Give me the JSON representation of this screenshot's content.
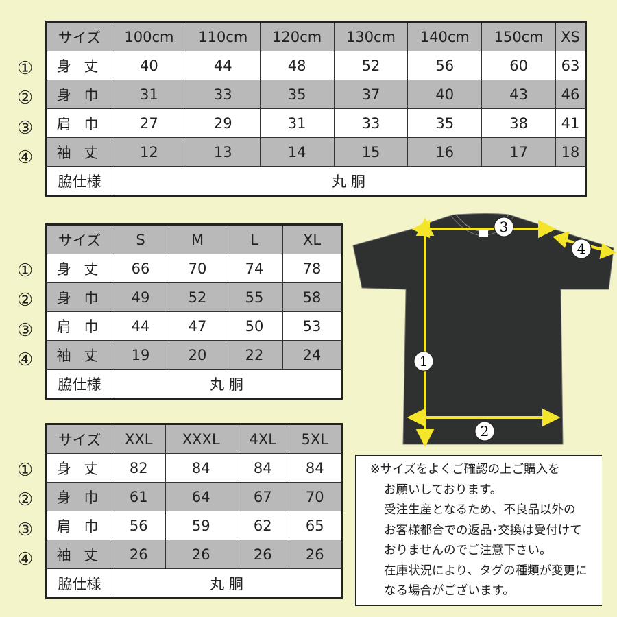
{
  "colors": {
    "background": "#f4f4cb",
    "gray_row": "#b9b9b9",
    "arrow": "#f5e52a",
    "shirt": "#2f3130"
  },
  "row_markers": [
    "①",
    "②",
    "③",
    "④"
  ],
  "row_labels": [
    "身 丈",
    "身 巾",
    "肩 巾",
    "袖 丈"
  ],
  "header_label": "サイズ",
  "side_label": "脇仕様",
  "side_value": "丸 胴",
  "tables": [
    {
      "sizes": [
        "100cm",
        "110cm",
        "120cm",
        "130cm",
        "140cm",
        "150cm",
        "XS"
      ],
      "rows": [
        [
          "40",
          "44",
          "48",
          "52",
          "56",
          "60",
          "63"
        ],
        [
          "31",
          "33",
          "35",
          "37",
          "40",
          "43",
          "46"
        ],
        [
          "27",
          "29",
          "31",
          "33",
          "35",
          "38",
          "41"
        ],
        [
          "12",
          "13",
          "14",
          "15",
          "16",
          "17",
          "18"
        ]
      ]
    },
    {
      "sizes": [
        "S",
        "M",
        "L",
        "XL"
      ],
      "rows": [
        [
          "66",
          "70",
          "74",
          "78"
        ],
        [
          "49",
          "52",
          "55",
          "58"
        ],
        [
          "44",
          "47",
          "50",
          "53"
        ],
        [
          "19",
          "20",
          "22",
          "24"
        ]
      ]
    },
    {
      "sizes": [
        "XXL",
        "XXXL",
        "4XL",
        "5XL"
      ],
      "rows": [
        [
          "82",
          "84",
          "84",
          "84"
        ],
        [
          "61",
          "64",
          "67",
          "70"
        ],
        [
          "56",
          "59",
          "62",
          "65"
        ],
        [
          "26",
          "26",
          "26",
          "26"
        ]
      ]
    }
  ],
  "diagram_markers": {
    "length": "1",
    "width": "2",
    "shoulder": "3",
    "sleeve": "4"
  },
  "note_lines": [
    "※サイズをよくご確認の上ご購入を",
    "お願いしております。",
    "受注生産となるため、不良品以外の",
    "お客様都合での返品･交換は受付けて",
    "おりませんのでご注意下さい。",
    "在庫状況により、タグの種類が変更に",
    "なる場合がございます。"
  ]
}
